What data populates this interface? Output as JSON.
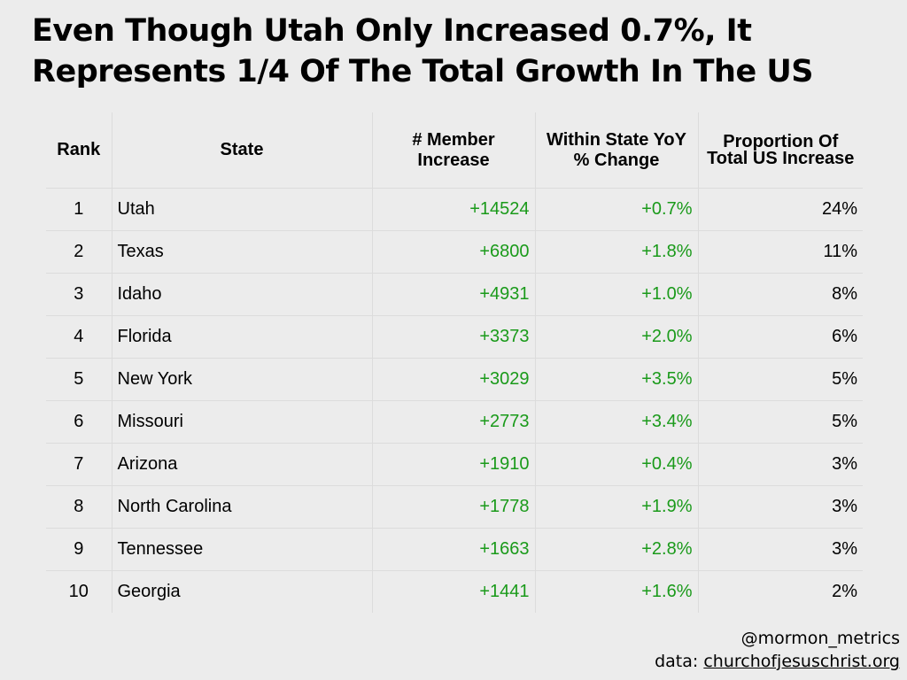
{
  "title": {
    "line1": "Even Though Utah Only Increased 0.7%, It",
    "line2": "Represents 1/4 Of The Total Growth In The US"
  },
  "chart_data": {
    "type": "table",
    "title": "Even Though Utah Only Increased 0.7%, It Represents 1/4 Of The Total Growth In The US",
    "columns": [
      "Rank",
      "State",
      "# Member Increase",
      "Within State YoY % Change",
      "Proportion Of Total US Increase"
    ],
    "rows": [
      {
        "rank": "1",
        "state": "Utah",
        "increase": "+14524",
        "yoy": "+0.7%",
        "proportion": "24%"
      },
      {
        "rank": "2",
        "state": "Texas",
        "increase": "+6800",
        "yoy": "+1.8%",
        "proportion": "11%"
      },
      {
        "rank": "3",
        "state": "Idaho",
        "increase": "+4931",
        "yoy": "+1.0%",
        "proportion": "8%"
      },
      {
        "rank": "4",
        "state": "Florida",
        "increase": "+3373",
        "yoy": "+2.0%",
        "proportion": "6%"
      },
      {
        "rank": "5",
        "state": "New York",
        "increase": "+3029",
        "yoy": "+3.5%",
        "proportion": "5%"
      },
      {
        "rank": "6",
        "state": "Missouri",
        "increase": "+2773",
        "yoy": "+3.4%",
        "proportion": "5%"
      },
      {
        "rank": "7",
        "state": "Arizona",
        "increase": "+1910",
        "yoy": "+0.4%",
        "proportion": "3%"
      },
      {
        "rank": "8",
        "state": "North Carolina",
        "increase": "+1778",
        "yoy": "+1.9%",
        "proportion": "3%"
      },
      {
        "rank": "9",
        "state": "Tennessee",
        "increase": "+1663",
        "yoy": "+2.8%",
        "proportion": "3%"
      },
      {
        "rank": "10",
        "state": "Georgia",
        "increase": "+1441",
        "yoy": "+1.6%",
        "proportion": "2%"
      }
    ],
    "colors": {
      "positive": "#1a9a1a",
      "text": "#000000",
      "background": "#ececec"
    }
  },
  "footer": {
    "handle": "@mormon_metrics",
    "source_prefix": "data: ",
    "source_link": "churchofjesuschrist.org"
  }
}
